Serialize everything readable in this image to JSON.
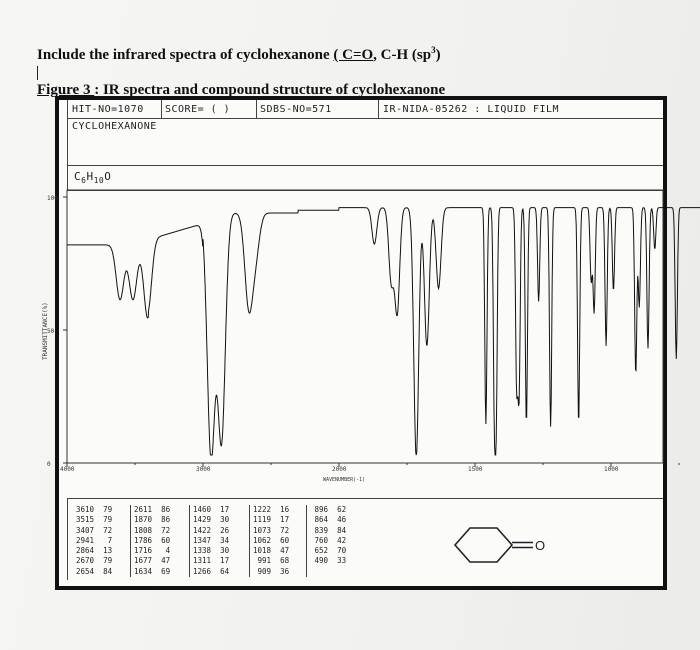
{
  "document": {
    "instruction_prefix": "Include the infrared spectra of cyclohexanone ",
    "instruction_underlined": "( C=O",
    "instruction_suffix": ", C-H (sp",
    "instruction_sup": "3",
    "instruction_close": ")",
    "figure_label": "Figure 3 ",
    "figure_caption": ": IR spectra and compound structure of cyclohexanone"
  },
  "spectrum_header": {
    "hit_no": "HIT-NO=1070",
    "score": "SCORE=  (    )",
    "sdbs_no": "SDBS-NO=571",
    "ir_nida": "IR-NIDA-05262 : LIQUID FILM",
    "compound_name": "CYCLOHEXANONE",
    "formula_c": "C",
    "formula_sub1": "6",
    "formula_h": "H",
    "formula_sub2": "10",
    "formula_o": "O"
  },
  "chart_data": {
    "type": "line",
    "ylabel": "TRANSMITTANCE(%)",
    "xlabel": "WAVENUMBER(-1)",
    "y_ticks": [
      "100",
      "50",
      "0"
    ],
    "x_ticks": [
      "4000",
      "3000",
      "2000",
      "1500",
      "1000",
      "500"
    ],
    "x_tick_values": [
      4000,
      3000,
      2000,
      1500,
      1000,
      500
    ],
    "xlim": [
      4000,
      400
    ],
    "ylim": [
      0,
      100
    ],
    "peaks": [
      {
        "x": 3610,
        "y": 79
      },
      {
        "x": 3515,
        "y": 79
      },
      {
        "x": 3407,
        "y": 72
      },
      {
        "x": 2941,
        "y": 7
      },
      {
        "x": 2864,
        "y": 13
      },
      {
        "x": 2670,
        "y": 79
      },
      {
        "x": 2654,
        "y": 84
      },
      {
        "x": 2611,
        "y": 86
      },
      {
        "x": 1870,
        "y": 86
      },
      {
        "x": 1808,
        "y": 72
      },
      {
        "x": 1786,
        "y": 60
      },
      {
        "x": 1716,
        "y": 4
      },
      {
        "x": 1677,
        "y": 47
      },
      {
        "x": 1634,
        "y": 69
      },
      {
        "x": 1460,
        "y": 17
      },
      {
        "x": 1429,
        "y": 30
      },
      {
        "x": 1422,
        "y": 26
      },
      {
        "x": 1347,
        "y": 34
      },
      {
        "x": 1338,
        "y": 30
      },
      {
        "x": 1311,
        "y": 17
      },
      {
        "x": 1266,
        "y": 64
      },
      {
        "x": 1222,
        "y": 16
      },
      {
        "x": 1119,
        "y": 17
      },
      {
        "x": 1073,
        "y": 72
      },
      {
        "x": 1062,
        "y": 60
      },
      {
        "x": 1018,
        "y": 47
      },
      {
        "x": 991,
        "y": 68
      },
      {
        "x": 909,
        "y": 36
      },
      {
        "x": 896,
        "y": 62
      },
      {
        "x": 864,
        "y": 46
      },
      {
        "x": 839,
        "y": 84
      },
      {
        "x": 760,
        "y": 42
      },
      {
        "x": 652,
        "y": 70
      },
      {
        "x": 490,
        "y": 33
      }
    ]
  },
  "peak_table": {
    "col1": "3610  79\n3515  79\n3407  72\n2941   7\n2864  13\n2670  79\n2654  84",
    "col2": "2611  86\n1870  86\n1808  72\n1786  60\n1716   4\n1677  47\n1634  69",
    "col3": "1460  17\n1429  30\n1422  26\n1347  34\n1338  30\n1311  17\n1266  64",
    "col4": "1222  16\n1119  17\n1073  72\n1062  60\n1018  47\n 991  68\n 909  36",
    "col5": " 896  62\n 864  46\n 839  84\n 760  42\n 652  70\n 490  33"
  },
  "structure": {
    "oxygen_label": "O"
  }
}
